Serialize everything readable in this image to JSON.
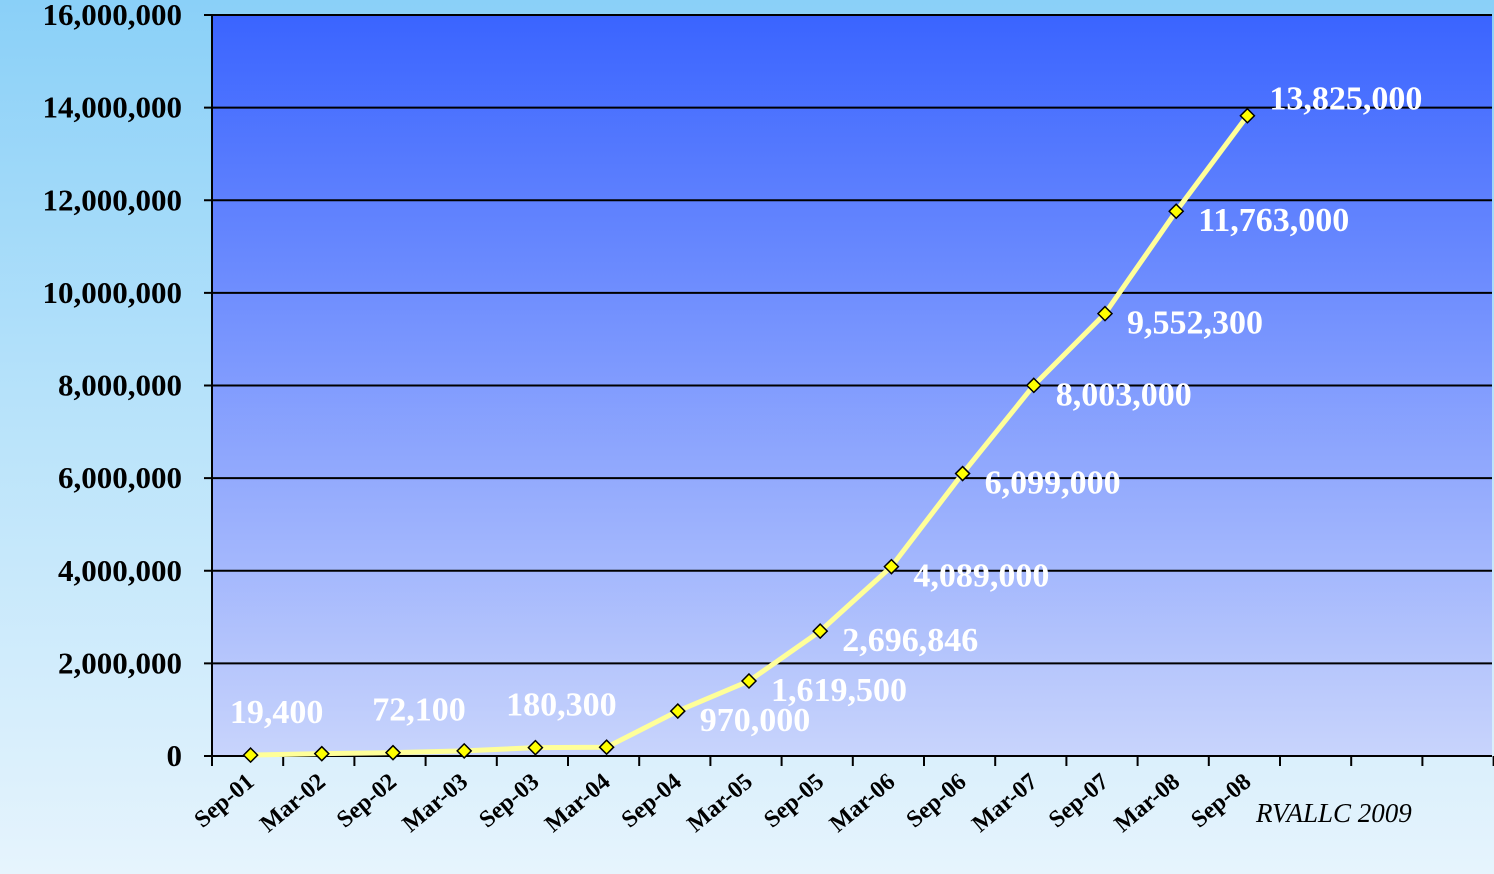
{
  "chart_data": {
    "type": "line",
    "categories": [
      "Sep-01",
      "Mar-02",
      "Sep-02",
      "Mar-03",
      "Sep-03",
      "Mar-04",
      "Sep-04",
      "Mar-05",
      "Sep-05",
      "Mar-06",
      "Sep-06",
      "Mar-07",
      "Sep-07",
      "Mar-08",
      "Sep-08"
    ],
    "series": [
      {
        "values": [
          19400,
          50000,
          72100,
          110000,
          180300,
          190000,
          970000,
          1619500,
          2696846,
          4089000,
          6099000,
          8003000,
          9552300,
          11763000,
          13825000
        ],
        "data_labels": [
          "19,400",
          "",
          "72,100",
          "",
          "180,300",
          "",
          "970,000",
          "1,619,500",
          "2,696,846",
          "4,089,000",
          "6,099,000",
          "8,003,000",
          "9,552,300",
          "11,763,000",
          "13,825,000"
        ],
        "color": "#ffff99",
        "marker_color": "#ffff00"
      }
    ],
    "ylim": [
      0,
      16000000
    ],
    "yticks": [
      0,
      2000000,
      4000000,
      6000000,
      8000000,
      10000000,
      12000000,
      14000000,
      16000000
    ],
    "ytick_labels": [
      "0",
      "2,000,000",
      "4,000,000",
      "6,000,000",
      "8,000,000",
      "10,000,000",
      "12,000,000",
      "14,000,000",
      "16,000,000"
    ],
    "grid": true,
    "title": "",
    "xlabel": "",
    "ylabel": "",
    "plot_background": [
      "#3a64ff",
      "#c8d4fc"
    ]
  },
  "credit": "RVALLC  2009"
}
